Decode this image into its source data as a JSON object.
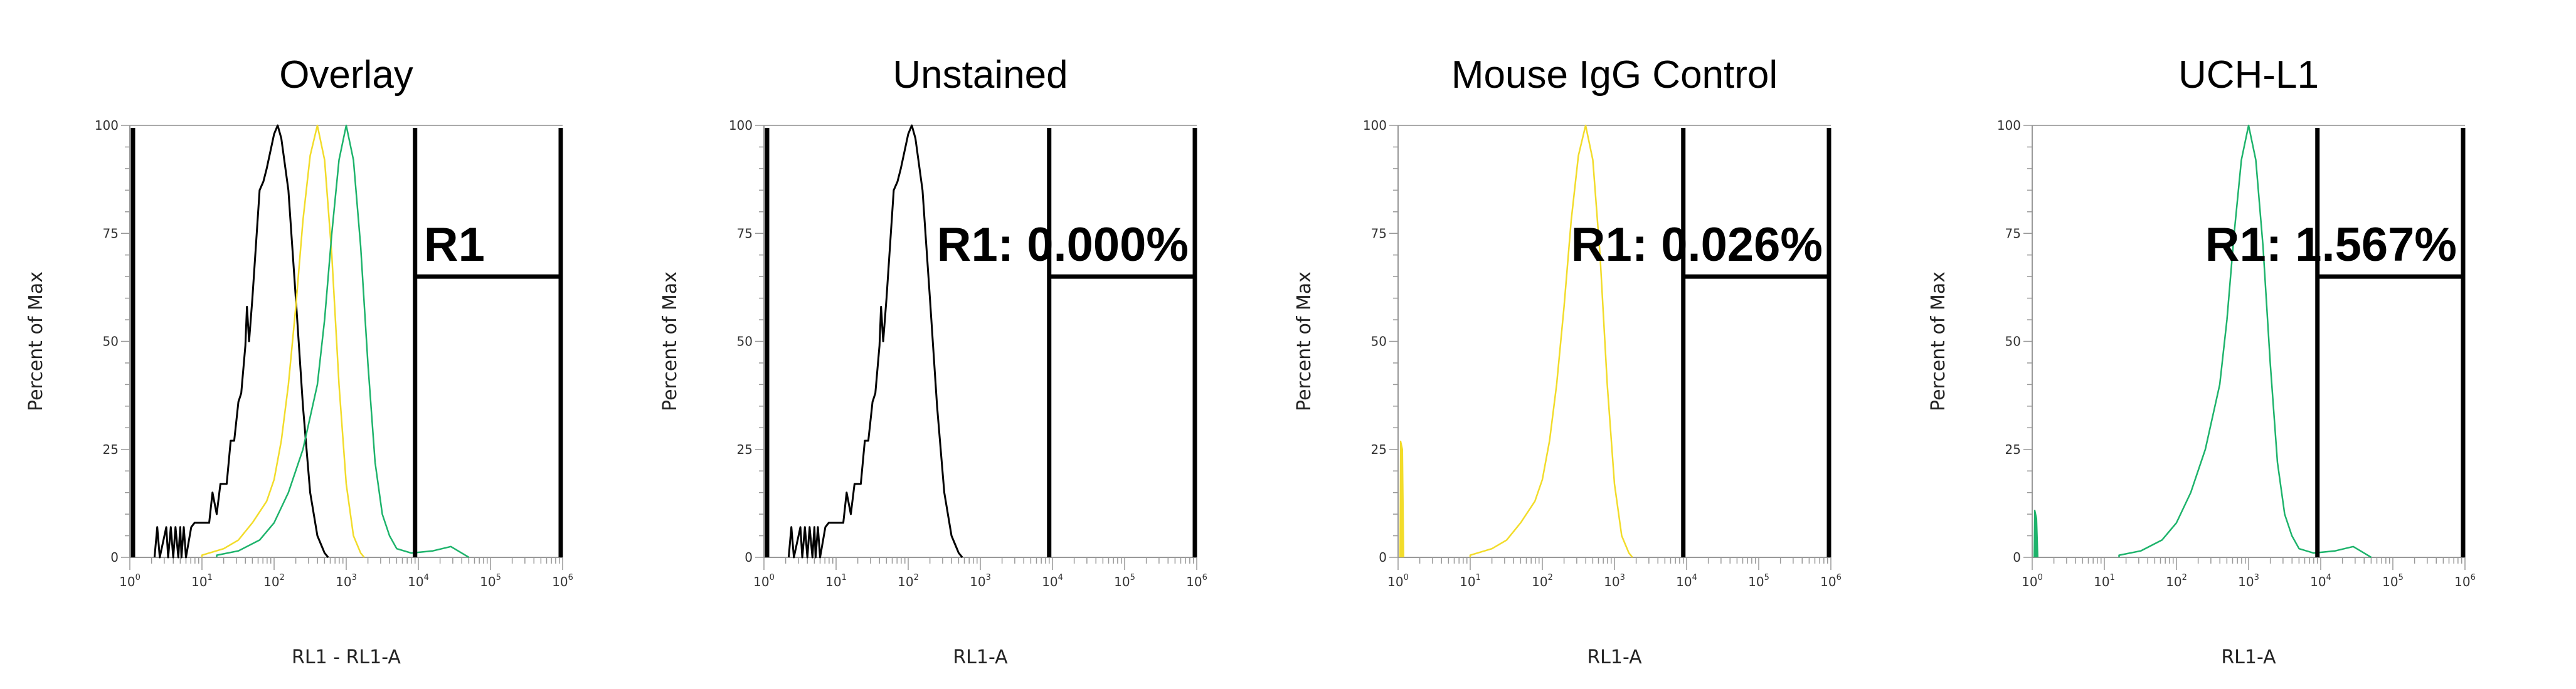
{
  "chart_data": [
    {
      "type": "line",
      "title": "Overlay",
      "xlabel": "RL1 - RL1-A",
      "ylabel": "Percent of Max",
      "xscale": "log",
      "xlim": [
        1,
        1000000
      ],
      "ylim": [
        0,
        100
      ],
      "xticks": [
        "10^0",
        "10^1",
        "10^2",
        "10^3",
        "10^4",
        "10^5",
        "10^6"
      ],
      "yticks": [
        "0",
        "25",
        "50",
        "75",
        "100"
      ],
      "gate": {
        "label": "R1",
        "x_range": [
          9000,
          1000000
        ],
        "level": 65
      },
      "series": [
        {
          "color": "#000000",
          "key": "unstained"
        },
        {
          "color": "#f2dc2a",
          "key": "igg"
        },
        {
          "color": "#1db36b",
          "key": "uchl1"
        }
      ]
    },
    {
      "type": "line",
      "title": "Unstained",
      "xlabel": "RL1-A",
      "ylabel": "Percent of Max",
      "xscale": "log",
      "xlim": [
        1,
        1000000
      ],
      "ylim": [
        0,
        100
      ],
      "xticks": [
        "10^0",
        "10^1",
        "10^2",
        "10^3",
        "10^4",
        "10^5",
        "10^6"
      ],
      "yticks": [
        "0",
        "25",
        "50",
        "75",
        "100"
      ],
      "gate": {
        "label": "R1: 0.000%",
        "x_range": [
          9000,
          1000000
        ],
        "level": 65
      },
      "series": [
        {
          "color": "#000000",
          "key": "unstained"
        }
      ]
    },
    {
      "type": "line",
      "title": "Mouse IgG Control",
      "xlabel": "RL1-A",
      "ylabel": "Percent of Max",
      "xscale": "log",
      "xlim": [
        1,
        1000000
      ],
      "ylim": [
        0,
        100
      ],
      "xticks": [
        "10^0",
        "10^1",
        "10^2",
        "10^3",
        "10^4",
        "10^5",
        "10^6"
      ],
      "yticks": [
        "0",
        "25",
        "50",
        "75",
        "100"
      ],
      "gate": {
        "label": "R1: 0.026%",
        "x_range": [
          9000,
          1000000
        ],
        "level": 65
      },
      "series": [
        {
          "color": "#f2dc2a",
          "key": "igg",
          "spike_at_min": 27
        }
      ]
    },
    {
      "type": "line",
      "title": "UCH-L1",
      "xlabel": "RL1-A",
      "ylabel": "Percent of Max",
      "xscale": "log",
      "xlim": [
        1,
        1000000
      ],
      "ylim": [
        0,
        100
      ],
      "xticks": [
        "10^0",
        "10^1",
        "10^2",
        "10^3",
        "10^4",
        "10^5",
        "10^6"
      ],
      "yticks": [
        "0",
        "25",
        "50",
        "75",
        "100"
      ],
      "gate": {
        "label": "R1: 1.567%",
        "x_range": [
          9000,
          1000000
        ],
        "level": 65
      },
      "series": [
        {
          "color": "#1db36b",
          "key": "uchl1",
          "spike_at_min": 11
        }
      ]
    }
  ],
  "histograms": {
    "unstained": [
      [
        2.2,
        0
      ],
      [
        2.4,
        7
      ],
      [
        2.6,
        0
      ],
      [
        3.2,
        7
      ],
      [
        3.4,
        0
      ],
      [
        3.7,
        7
      ],
      [
        4,
        0
      ],
      [
        4.3,
        7
      ],
      [
        4.7,
        0
      ],
      [
        5,
        7
      ],
      [
        5.2,
        0
      ],
      [
        5.6,
        7
      ],
      [
        6,
        0
      ],
      [
        7.1,
        7
      ],
      [
        7.9,
        8
      ],
      [
        10,
        8
      ],
      [
        12.6,
        8
      ],
      [
        14,
        15
      ],
      [
        16,
        10
      ],
      [
        18,
        17
      ],
      [
        22,
        17
      ],
      [
        25,
        27
      ],
      [
        28,
        27
      ],
      [
        32,
        36
      ],
      [
        35,
        38
      ],
      [
        40,
        49
      ],
      [
        42,
        58
      ],
      [
        45,
        50
      ],
      [
        50,
        60
      ],
      [
        63,
        85
      ],
      [
        71,
        87
      ],
      [
        79,
        90
      ],
      [
        100,
        98
      ],
      [
        112,
        100
      ],
      [
        126,
        97
      ],
      [
        158,
        85
      ],
      [
        200,
        60
      ],
      [
        251,
        35
      ],
      [
        316,
        15
      ],
      [
        398,
        5
      ],
      [
        501,
        1
      ],
      [
        562,
        0
      ]
    ],
    "igg": [
      [
        10,
        0.5
      ],
      [
        20,
        2
      ],
      [
        32,
        4
      ],
      [
        50,
        8
      ],
      [
        79,
        13
      ],
      [
        100,
        18
      ],
      [
        126,
        27
      ],
      [
        158,
        40
      ],
      [
        200,
        58
      ],
      [
        251,
        78
      ],
      [
        316,
        93
      ],
      [
        398,
        100
      ],
      [
        501,
        92
      ],
      [
        631,
        70
      ],
      [
        794,
        40
      ],
      [
        1000,
        17
      ],
      [
        1259,
        5
      ],
      [
        1585,
        1
      ],
      [
        1778,
        0
      ]
    ],
    "uchl1": [
      [
        16,
        0.5
      ],
      [
        32,
        1.5
      ],
      [
        63,
        4
      ],
      [
        100,
        8
      ],
      [
        158,
        15
      ],
      [
        251,
        25
      ],
      [
        398,
        40
      ],
      [
        501,
        55
      ],
      [
        631,
        75
      ],
      [
        794,
        92
      ],
      [
        1000,
        100
      ],
      [
        1259,
        92
      ],
      [
        1585,
        72
      ],
      [
        1995,
        45
      ],
      [
        2512,
        22
      ],
      [
        3162,
        10
      ],
      [
        3981,
        5
      ],
      [
        5012,
        2
      ],
      [
        7943,
        1
      ],
      [
        15849,
        1.5
      ],
      [
        28184,
        2.5
      ],
      [
        39811,
        1
      ],
      [
        50119,
        0
      ]
    ]
  }
}
